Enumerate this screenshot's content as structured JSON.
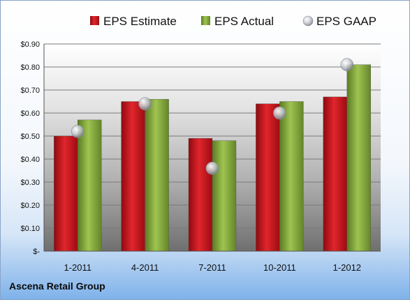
{
  "chart_data": {
    "type": "bar",
    "categories": [
      "1-2011",
      "4-2011",
      "7-2011",
      "10-2011",
      "1-2012"
    ],
    "series": [
      {
        "name": "EPS Estimate",
        "kind": "bar",
        "color": "#c0141c",
        "values": [
          0.5,
          0.65,
          0.49,
          0.64,
          0.67
        ]
      },
      {
        "name": "EPS Actual",
        "kind": "bar",
        "color": "#7fa33a",
        "values": [
          0.57,
          0.66,
          0.48,
          0.65,
          0.81
        ]
      },
      {
        "name": "EPS GAAP",
        "kind": "marker",
        "color": "#b8bcc4",
        "values": [
          0.52,
          0.64,
          0.36,
          0.6,
          0.81
        ]
      }
    ],
    "ylim": [
      0,
      0.9
    ],
    "yticks": [
      0,
      0.1,
      0.2,
      0.3,
      0.4,
      0.5,
      0.6,
      0.7,
      0.8,
      0.9
    ],
    "ytick_labels": [
      "$-",
      "$0.10",
      "$0.20",
      "$0.30",
      "$0.40",
      "$0.50",
      "$0.60",
      "$0.70",
      "$0.80",
      "$0.90"
    ],
    "grid": true,
    "legend_position": "top"
  },
  "footer": {
    "company": "Ascena Retail Group"
  }
}
